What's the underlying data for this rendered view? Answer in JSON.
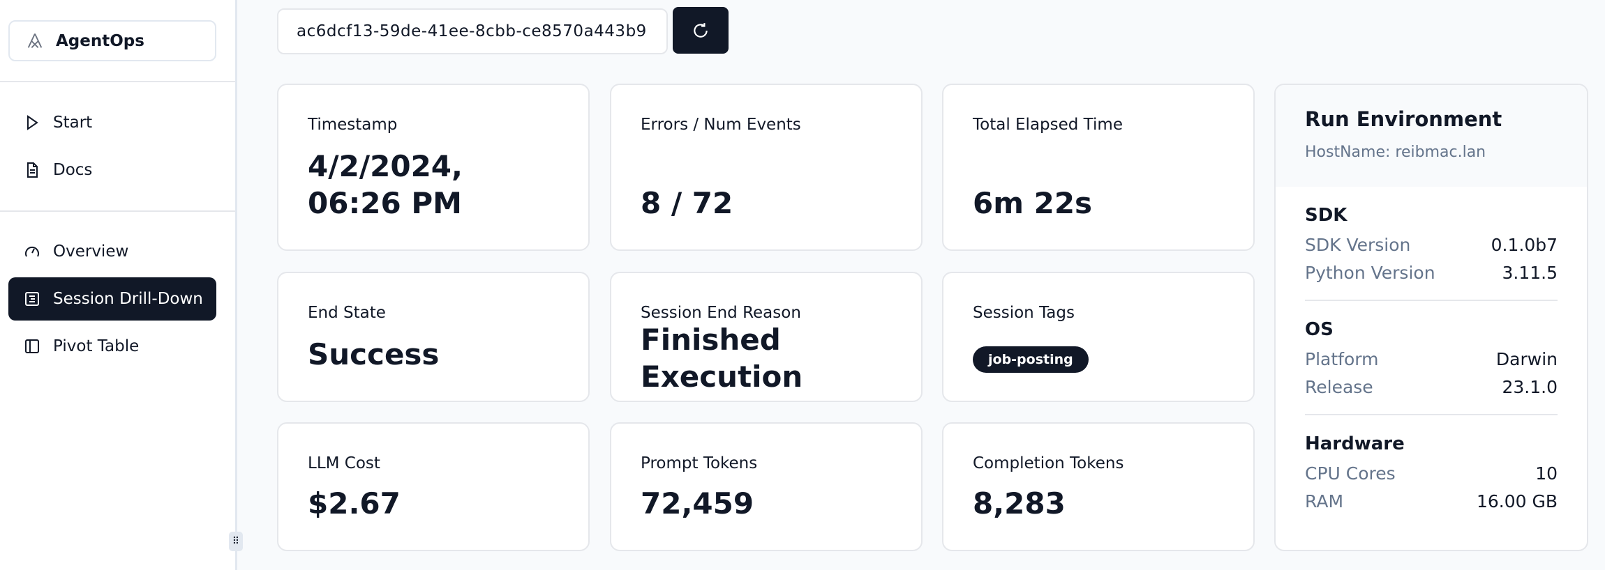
{
  "sidebar": {
    "brand": "AgentOps",
    "items": [
      {
        "label": "Start",
        "icon": "play-icon"
      },
      {
        "label": "Docs",
        "icon": "document-icon"
      },
      {
        "label": "Overview",
        "icon": "gauge-icon"
      },
      {
        "label": "Session Drill-Down",
        "icon": "list-icon",
        "active": true
      },
      {
        "label": "Pivot Table",
        "icon": "panel-icon"
      }
    ]
  },
  "session": {
    "id": "ac6dcf13-59de-41ee-8cbb-ce8570a443b9",
    "refresh_icon": "refresh-icon"
  },
  "cards": [
    {
      "label": "Timestamp",
      "value": "4/2/2024, 06:26 PM"
    },
    {
      "label": "Errors / Num Events",
      "value": "8 / 72"
    },
    {
      "label": "Total Elapsed Time",
      "value": "6m 22s"
    },
    {
      "label": "End State",
      "value": "Success"
    },
    {
      "label": "Session End Reason",
      "value": "Finished Execution"
    },
    {
      "label": "Session Tags",
      "tag": "job-posting"
    },
    {
      "label": "LLM Cost",
      "value": "$2.67"
    },
    {
      "label": "Prompt Tokens",
      "value": "72,459"
    },
    {
      "label": "Completion Tokens",
      "value": "8,283"
    }
  ],
  "env": {
    "title": "Run Environment",
    "host": "HostName: reibmac.lan",
    "sections": [
      {
        "title": "SDK",
        "rows": [
          {
            "k": "SDK Version",
            "v": "0.1.0b7"
          },
          {
            "k": "Python Version",
            "v": "3.11.5"
          }
        ]
      },
      {
        "title": "OS",
        "rows": [
          {
            "k": "Platform",
            "v": "Darwin"
          },
          {
            "k": "Release",
            "v": "23.1.0"
          }
        ]
      },
      {
        "title": "Hardware",
        "rows": [
          {
            "k": "CPU Cores",
            "v": "10"
          },
          {
            "k": "RAM",
            "v": "16.00 GB"
          }
        ]
      }
    ]
  },
  "colors": {
    "primary": "#111827",
    "muted": "#64748b",
    "border": "#e5e7eb",
    "bg": "#f8fafc"
  }
}
